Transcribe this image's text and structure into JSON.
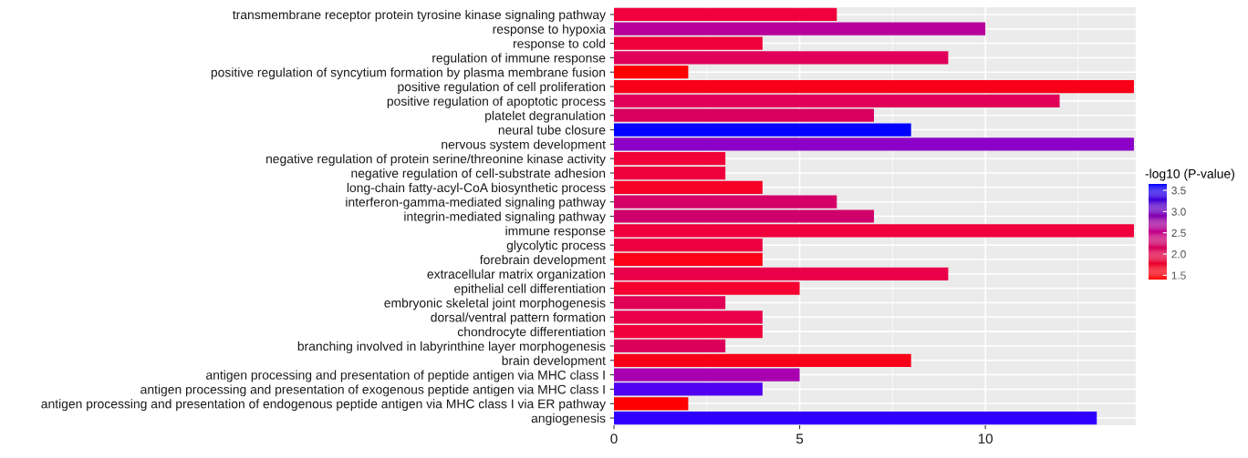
{
  "chart_data": {
    "type": "bar",
    "orientation": "horizontal",
    "categories": [
      "transmembrane receptor protein tyrosine kinase signaling pathway",
      "response to hypoxia",
      "response to cold",
      "regulation of immune response",
      "positive regulation of syncytium formation by plasma membrane fusion",
      "positive regulation of cell proliferation",
      "positive regulation of apoptotic process",
      "platelet degranulation",
      "neural tube closure",
      "nervous system development",
      "negative regulation of protein serine/threonine kinase activity",
      "negative regulation of cell-substrate adhesion",
      "long-chain fatty-acyl-CoA biosynthetic process",
      "interferon-gamma-mediated signaling pathway",
      "integrin-mediated signaling pathway",
      "immune response",
      "glycolytic process",
      "forebrain development",
      "extracellular matrix organization",
      "epithelial cell differentiation",
      "embryonic skeletal joint morphogenesis",
      "dorsal/ventral pattern formation",
      "chondrocyte differentiation",
      "branching involved in labyrinthine layer morphogenesis",
      "brain development",
      "antigen processing and presentation of peptide antigen via MHC class I",
      "antigen processing and presentation of exogenous peptide antigen via MHC class I",
      "antigen processing and presentation of endogenous peptide antigen via MHC class I via ER pathway",
      "angiogenesis"
    ],
    "values": [
      6,
      10,
      4,
      9,
      2,
      14,
      12,
      7,
      8,
      14,
      3,
      3,
      4,
      6,
      7,
      14,
      4,
      4,
      9,
      5,
      3,
      4,
      4,
      3,
      8,
      5,
      4,
      2,
      13
    ],
    "colors": [
      "#f0003c",
      "#b8009a",
      "#f00038",
      "#e0005a",
      "#ff0000",
      "#fa0018",
      "#e00058",
      "#d8005e",
      "#0000ff",
      "#8c00c8",
      "#f20038",
      "#ee003e",
      "#f60028",
      "#d40068",
      "#d0006a",
      "#f0003c",
      "#ec0040",
      "#fc0018",
      "#e8004a",
      "#f60030",
      "#e00055",
      "#e8004a",
      "#f00038",
      "#dc005a",
      "#fa0018",
      "#a800b0",
      "#5000f0",
      "#ff0000",
      "#3000ff"
    ],
    "xlim": [
      0,
      14.05
    ],
    "xticks": [
      0,
      5,
      10
    ],
    "clabel": "-log10 (P-value)",
    "clim": [
      1.4,
      3.65
    ],
    "cticks": [
      {
        "value": 1.5,
        "label": "1.5"
      },
      {
        "value": 2,
        "label": "2.0"
      },
      {
        "value": 2.5,
        "label": "2.5"
      },
      {
        "value": 3,
        "label": "3.0"
      },
      {
        "value": 3.5,
        "label": "3.5"
      }
    ],
    "grid": true
  }
}
